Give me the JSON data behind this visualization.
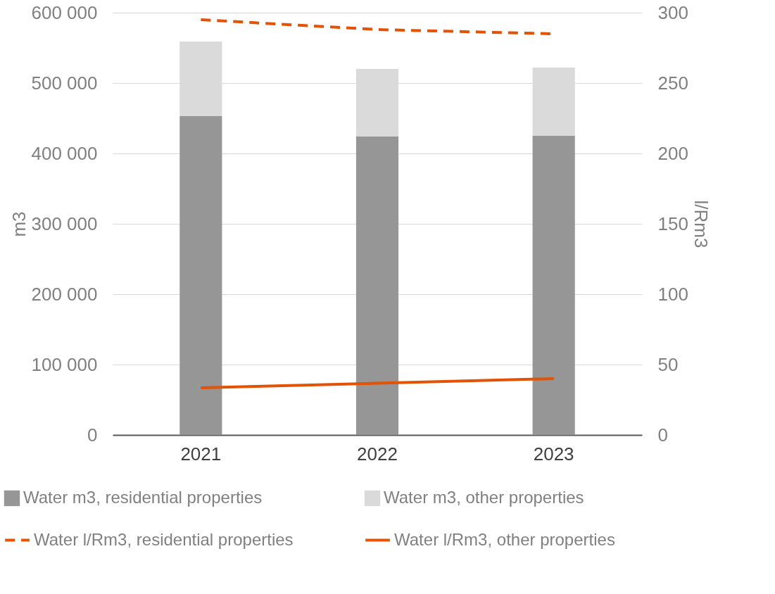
{
  "chart_data": {
    "type": "bar",
    "stacked": true,
    "categories": [
      "2021",
      "2022",
      "2023"
    ],
    "ylabel": "m3",
    "y2label": "l/Rm3",
    "ylim": [
      0,
      600000
    ],
    "yticks": [
      {
        "value": 0,
        "label": "0"
      },
      {
        "value": 100000,
        "label": "100 000"
      },
      {
        "value": 200000,
        "label": "200 000"
      },
      {
        "value": 300000,
        "label": "300 000"
      },
      {
        "value": 400000,
        "label": "400 000"
      },
      {
        "value": 500000,
        "label": "500 000"
      },
      {
        "value": 600000,
        "label": "600 000"
      }
    ],
    "y2lim": [
      0,
      300
    ],
    "y2ticks": [
      0,
      50,
      100,
      150,
      200,
      250,
      300
    ],
    "grid": "y",
    "legend": "bottom",
    "series": [
      {
        "name": "Water m3, residential properties",
        "color": "#969696",
        "values": [
          453000,
          424000,
          425000
        ]
      },
      {
        "name": "Water m3, other properties",
        "color": "#dadada",
        "values": [
          106000,
          96000,
          97000
        ]
      },
      {
        "name": "Water l/Rm3, residential properties",
        "type": "line",
        "axis": "y2",
        "line_style": "dashed",
        "color": "#e35205",
        "values": [
          295,
          288,
          285
        ]
      },
      {
        "name": "Water l/Rm3, other properties",
        "type": "line",
        "axis": "y2",
        "line_style": "solid",
        "color": "#e35205",
        "values": [
          33.5,
          36.7,
          40
        ]
      }
    ]
  }
}
